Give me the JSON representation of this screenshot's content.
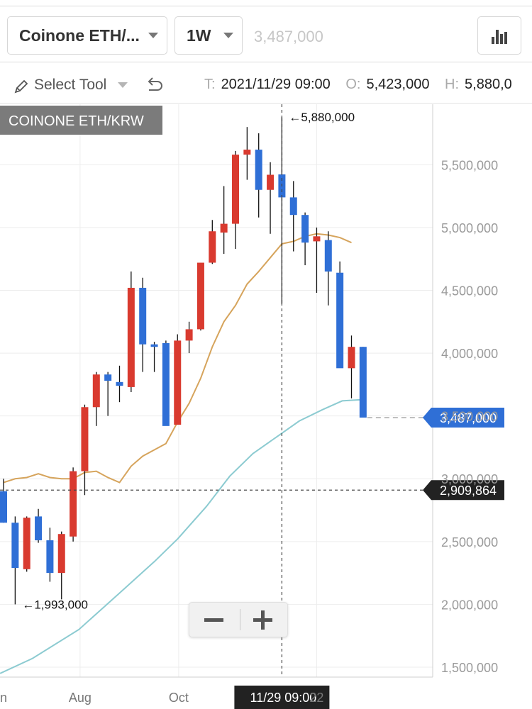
{
  "header": {
    "market_select": "Coinone ETH/...",
    "interval_select": "1W",
    "price_display": "3,487,000",
    "chart_type_icon": "bar-chart-icon"
  },
  "toolbar": {
    "tool_label": "Select Tool",
    "ohlc": [
      {
        "key": "T:",
        "value": "2021/11/29 09:00"
      },
      {
        "key": "O:",
        "value": "5,423,000"
      },
      {
        "key": "H:",
        "value": "5,880,0"
      }
    ]
  },
  "colors": {
    "up": "#d93a2f",
    "down": "#2f6fd6",
    "ma_short": "#d6a45c",
    "ma_long": "#8ccbd1",
    "price_tag": "#2f6fd6",
    "cursor_tag": "#222222"
  },
  "chart_data": {
    "type": "candlestick",
    "title": "COINONE ETH/KRW",
    "y_ticks": [
      "1,500,000",
      "2,000,000",
      "2,500,000",
      "3,000,000",
      "3,500,000",
      "4,000,000",
      "4,500,000",
      "5,000,000",
      "5,500,000"
    ],
    "y_tick_values": [
      1500000,
      2000000,
      2500000,
      3000000,
      3500000,
      4000000,
      4500000,
      5000000,
      5500000
    ],
    "ylim": [
      1350000,
      5950000
    ],
    "x_ticks": [
      {
        "label": "n",
        "index": 0.0
      },
      {
        "label": "Aug",
        "index": 6.6
      },
      {
        "label": "Oct",
        "index": 15.1
      },
      {
        "label": "22",
        "index": 27.0
      }
    ],
    "candles": [
      {
        "o": 2900000,
        "h": 3000000,
        "l": 2650000,
        "c": 2650000
      },
      {
        "o": 2650000,
        "h": 2700000,
        "l": 2000000,
        "c": 2290000
      },
      {
        "o": 2280000,
        "h": 2700000,
        "l": 2260000,
        "c": 2690000
      },
      {
        "o": 2700000,
        "h": 2760000,
        "l": 2490000,
        "c": 2510000
      },
      {
        "o": 2510000,
        "h": 2610000,
        "l": 2180000,
        "c": 2250000
      },
      {
        "o": 2250000,
        "h": 2580000,
        "l": 2040000,
        "c": 2560000
      },
      {
        "o": 2540000,
        "h": 3090000,
        "l": 2500000,
        "c": 3060000
      },
      {
        "o": 3060000,
        "h": 3590000,
        "l": 2870000,
        "c": 3570000
      },
      {
        "o": 3570000,
        "h": 3850000,
        "l": 3420000,
        "c": 3830000
      },
      {
        "o": 3830000,
        "h": 3850000,
        "l": 3500000,
        "c": 3780000
      },
      {
        "o": 3770000,
        "h": 3900000,
        "l": 3610000,
        "c": 3740000
      },
      {
        "o": 3730000,
        "h": 4650000,
        "l": 3690000,
        "c": 4520000
      },
      {
        "o": 4520000,
        "h": 4600000,
        "l": 3850000,
        "c": 4070000
      },
      {
        "o": 4070000,
        "h": 4090000,
        "l": 3850000,
        "c": 4050000
      },
      {
        "o": 4080000,
        "h": 4100000,
        "l": 3430000,
        "c": 3420000
      },
      {
        "o": 3430000,
        "h": 4150000,
        "l": 3460000,
        "c": 4100000
      },
      {
        "o": 4100000,
        "h": 4250000,
        "l": 4000000,
        "c": 4190000
      },
      {
        "o": 4190000,
        "h": 4720000,
        "l": 4180000,
        "c": 4720000
      },
      {
        "o": 4720000,
        "h": 5060000,
        "l": 4710000,
        "c": 4970000
      },
      {
        "o": 4960000,
        "h": 5330000,
        "l": 4790000,
        "c": 5030000
      },
      {
        "o": 5030000,
        "h": 5610000,
        "l": 4830000,
        "c": 5580000
      },
      {
        "o": 5580000,
        "h": 5800000,
        "l": 5380000,
        "c": 5620000
      },
      {
        "o": 5620000,
        "h": 5750000,
        "l": 5080000,
        "c": 5300000
      },
      {
        "o": 5300000,
        "h": 5520000,
        "l": 4950000,
        "c": 5420000
      },
      {
        "o": 5423000,
        "h": 5880000,
        "l": 4390000,
        "c": 5240000
      },
      {
        "o": 5240000,
        "h": 5370000,
        "l": 4810000,
        "c": 5100000
      },
      {
        "o": 5100000,
        "h": 5120000,
        "l": 4700000,
        "c": 4880000
      },
      {
        "o": 4890000,
        "h": 5000000,
        "l": 4480000,
        "c": 4930000
      },
      {
        "o": 4900000,
        "h": 4970000,
        "l": 4380000,
        "c": 4650000
      },
      {
        "o": 4640000,
        "h": 4730000,
        "l": 3890000,
        "c": 3880000
      },
      {
        "o": 3880000,
        "h": 4140000,
        "l": 3640000,
        "c": 4050000
      },
      {
        "o": 4050000,
        "h": 4050000,
        "l": 3490000,
        "c": 3487000
      }
    ],
    "ma_short": [
      2970000,
      3000000,
      3010000,
      3040000,
      3010000,
      3000000,
      3000000,
      3050000,
      3060000,
      3010000,
      2970000,
      3100000,
      3180000,
      3230000,
      3280000,
      3450000,
      3600000,
      3800000,
      4050000,
      4250000,
      4380000,
      4550000,
      4650000,
      4760000,
      4870000,
      4890000,
      4930000,
      4950000,
      4940000,
      4920000,
      4880000
    ],
    "ma_long_x": [
      -0.3,
      2.5,
      6.5,
      10.0,
      13.0,
      15.0,
      17.5,
      19.5,
      21.5,
      23.5,
      25.5,
      27.5,
      29.2,
      31.0
    ],
    "ma_long": [
      1450000,
      1570000,
      1800000,
      2090000,
      2340000,
      2520000,
      2780000,
      3020000,
      3200000,
      3330000,
      3460000,
      3550000,
      3620000,
      3630000
    ],
    "annotations": {
      "high_label": "5,880,000",
      "low_label": "1,993,000",
      "last_price": 3487000,
      "last_price_label": "3,487,000",
      "cursor_price": 2909864,
      "cursor_price_label": "2,909,864",
      "cursor_index": 24,
      "cursor_time_label": "11/29 09:00"
    }
  }
}
